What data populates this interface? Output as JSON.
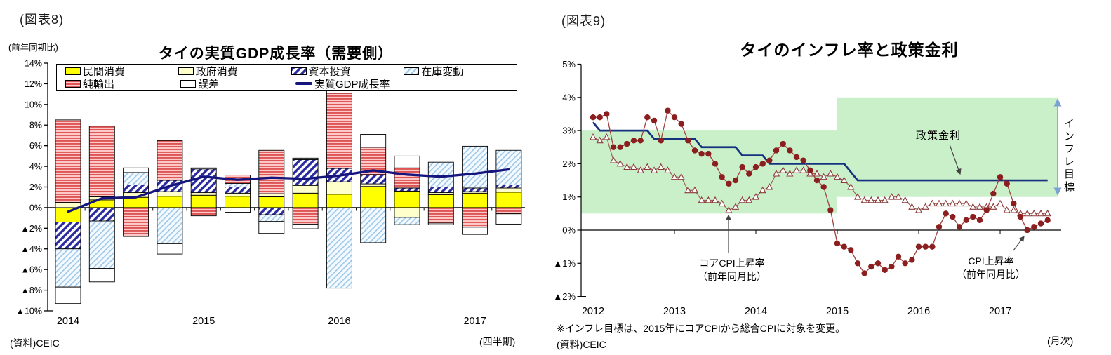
{
  "colors": {
    "private_consumption": "#ffff00",
    "government_consumption": "#ffffcc",
    "capex_stripe": "#2b2ba0",
    "inventory_stripe": "#9fc9e8",
    "inventory_bg": "#f4faff",
    "net_export_stripe": "#dd5555",
    "net_export_bg": "#ffc8c8",
    "error_fill": "#ffffff",
    "gdp_line": "#15157e",
    "policy_line": "#16327f",
    "cpi_marker": "#8b1e1e",
    "cpi_line": "#a04040",
    "core_line": "#9c5f50",
    "core_marker_stroke": "#8b3a3a",
    "target_band": "#c9f0c9",
    "target_arrow": "#7aa3d4",
    "annotation_arrow": "#444444",
    "axis": "#000000"
  },
  "figures": {
    "f8": {
      "fig_label": "(図表8)",
      "unit_label": "(前年同期比)",
      "source": "(資料)CEIC",
      "freq_label": "(四半期)"
    },
    "f9": {
      "fig_label": "(図表9)",
      "note": "※インフレ目標は、2015年にコアCPIから総合CPIに対象を変更。",
      "source": "(資料)CEIC",
      "freq_label": "(月次)",
      "annotations": {
        "policy_label": "政策金利",
        "core_label": "コアCPI上昇率\n（前年同月比）",
        "cpi_label": "CPI上昇率\n（前年同月比）",
        "band_label": "インフレ目標"
      }
    }
  },
  "chart_data": [
    {
      "type": "bar",
      "subtype": "stacked-bar-with-line",
      "title": "タイの実質GDP成長率（需要側）",
      "unit_label": "(前年同期比)",
      "x_note": "(四半期)",
      "source": "(資料)CEIC",
      "ylim": [
        -10,
        14
      ],
      "grid": false,
      "legend_position": "top-inside-box",
      "categories": [
        "2014Q1",
        "2014Q2",
        "2014Q3",
        "2014Q4",
        "2015Q1",
        "2015Q2",
        "2015Q3",
        "2015Q4",
        "2016Q1",
        "2016Q2",
        "2016Q3",
        "2016Q4",
        "2017Q1",
        "2017Q2"
      ],
      "series": [
        {
          "key": "priv",
          "name": "民間消費",
          "style": "solid-yellow",
          "values": [
            -1.4,
            0.75,
            1.0,
            1.1,
            1.2,
            1.1,
            1.05,
            1.4,
            1.3,
            2.05,
            1.6,
            1.25,
            1.4,
            1.5
          ]
        },
        {
          "key": "gov",
          "name": "政府消費",
          "style": "solid-cream",
          "values": [
            0.5,
            0.3,
            0.45,
            0.45,
            0.25,
            0.3,
            0.3,
            0.75,
            1.2,
            0.25,
            -0.95,
            0.2,
            0.15,
            0.4
          ]
        },
        {
          "key": "capex",
          "name": "資本投資",
          "style": "blue-diagonal-hatch",
          "values": [
            -2.6,
            -1.3,
            0.75,
            1.1,
            2.3,
            0.6,
            -0.7,
            2.5,
            1.3,
            0.9,
            0.3,
            0.55,
            0.35,
            0.3
          ]
        },
        {
          "key": "inv",
          "name": "在庫変動",
          "style": "lightblue-diagonal-hatch",
          "values": [
            -3.7,
            -4.6,
            1.2,
            -3.5,
            0.0,
            0.35,
            -0.65,
            0.15,
            -7.8,
            -3.4,
            -0.7,
            2.4,
            4.05,
            3.35
          ]
        },
        {
          "key": "netex",
          "name": "純輸出",
          "style": "red-horizontal-stripes",
          "values": [
            8.0,
            6.85,
            -2.8,
            3.85,
            -0.8,
            0.8,
            4.2,
            -1.6,
            7.3,
            2.65,
            1.95,
            -1.5,
            -1.9,
            -0.6
          ]
        },
        {
          "key": "err",
          "name": "誤差",
          "style": "white-outline",
          "values": [
            -1.6,
            -1.3,
            0.45,
            -1.0,
            0.1,
            -0.45,
            -1.15,
            -0.45,
            0.5,
            1.25,
            1.15,
            -0.15,
            -0.7,
            -1.0
          ]
        }
      ],
      "line_series": {
        "key": "gdp",
        "name": "実質GDP成長率",
        "values": [
          -0.4,
          0.9,
          1.0,
          2.1,
          3.0,
          2.7,
          2.9,
          2.8,
          3.1,
          3.6,
          3.2,
          3.0,
          3.3,
          3.7
        ]
      },
      "y_ticks": [
        {
          "v": 14,
          "label": "14%"
        },
        {
          "v": 12,
          "label": "12%"
        },
        {
          "v": 10,
          "label": "10%"
        },
        {
          "v": 8,
          "label": "8%"
        },
        {
          "v": 6,
          "label": "6%"
        },
        {
          "v": 4,
          "label": "4%"
        },
        {
          "v": 2,
          "label": "2%"
        },
        {
          "v": 0,
          "label": "0%"
        },
        {
          "v": -2,
          "label": "▲2%"
        },
        {
          "v": -4,
          "label": "▲4%"
        },
        {
          "v": -6,
          "label": "▲6%"
        },
        {
          "v": -8,
          "label": "▲8%"
        },
        {
          "v": -10,
          "label": "▲10%"
        }
      ],
      "year_labels": [
        {
          "label": "2014",
          "bar": 0
        },
        {
          "label": "2015",
          "bar": 4
        },
        {
          "label": "2016",
          "bar": 8
        },
        {
          "label": "2017",
          "bar": 12
        }
      ]
    },
    {
      "type": "line",
      "title": "タイのインフレ率と政策金利",
      "x_unit": "month",
      "x_start": "2012-01",
      "months": 68,
      "ylim": [
        -2,
        5
      ],
      "grid": false,
      "series": [
        {
          "key": "policy",
          "name": "政策金利",
          "marker": "none",
          "values": [
            3.25,
            3,
            3,
            3,
            3,
            3,
            3,
            3,
            3,
            2.75,
            2.75,
            2.75,
            2.75,
            2.75,
            2.75,
            2.75,
            2.5,
            2.5,
            2.5,
            2.5,
            2.5,
            2.5,
            2.25,
            2.25,
            2.25,
            2.25,
            2,
            2,
            2,
            2,
            2,
            2,
            2,
            2,
            2,
            2,
            2,
            2,
            1.75,
            1.5,
            1.5,
            1.5,
            1.5,
            1.5,
            1.5,
            1.5,
            1.5,
            1.5,
            1.5,
            1.5,
            1.5,
            1.5,
            1.5,
            1.5,
            1.5,
            1.5,
            1.5,
            1.5,
            1.5,
            1.5,
            1.5,
            1.5,
            1.5,
            1.5,
            1.5,
            1.5,
            1.5,
            1.5
          ]
        },
        {
          "key": "cpi",
          "name": "CPI上昇率（前年同月比）",
          "marker": "circle",
          "values": [
            3.4,
            3.4,
            3.5,
            2.5,
            2.5,
            2.6,
            2.7,
            2.7,
            3.4,
            3.3,
            2.7,
            3.6,
            3.4,
            3.2,
            2.7,
            2.4,
            2.3,
            2.3,
            2.0,
            1.6,
            1.4,
            1.5,
            1.9,
            1.7,
            1.9,
            2.0,
            2.1,
            2.4,
            2.6,
            2.4,
            2.2,
            2.1,
            1.8,
            1.5,
            1.3,
            0.6,
            -0.4,
            -0.5,
            -0.6,
            -1.0,
            -1.3,
            -1.1,
            -1.0,
            -1.2,
            -1.1,
            -0.8,
            -1.0,
            -0.9,
            -0.5,
            -0.5,
            -0.5,
            0.1,
            0.5,
            0.4,
            0.1,
            0.3,
            0.4,
            0.3,
            0.6,
            1.1,
            1.6,
            1.4,
            0.8,
            0.4,
            0.0,
            0.1,
            0.2,
            0.3
          ]
        },
        {
          "key": "core",
          "name": "コアCPI上昇率（前年同月比）",
          "marker": "triangle-open",
          "values": [
            2.8,
            2.7,
            2.8,
            2.1,
            2.0,
            1.9,
            1.9,
            1.8,
            1.9,
            1.8,
            1.9,
            1.8,
            1.6,
            1.6,
            1.2,
            1.2,
            0.9,
            0.9,
            0.9,
            0.8,
            0.6,
            0.7,
            0.9,
            0.9,
            1.0,
            1.2,
            1.3,
            1.7,
            1.8,
            1.7,
            1.8,
            1.8,
            1.7,
            1.7,
            1.6,
            1.7,
            1.6,
            1.5,
            1.3,
            1.0,
            0.9,
            0.9,
            0.9,
            0.9,
            1.0,
            1.0,
            0.9,
            0.7,
            0.6,
            0.7,
            0.8,
            0.8,
            0.8,
            0.8,
            0.8,
            0.8,
            0.7,
            0.7,
            0.7,
            0.7,
            0.8,
            0.6,
            0.6,
            0.5,
            0.5,
            0.5,
            0.5,
            0.5
          ]
        }
      ],
      "target_bands": [
        {
          "label": "インフレ目標(コアCPI)",
          "from_month": 0,
          "to_month": 36,
          "low": 0.5,
          "high": 3.0
        },
        {
          "label": "インフレ目標(総合CPI)",
          "from_month": 36,
          "to_month": 68.5,
          "low": 1.0,
          "high": 4.0
        }
      ],
      "band_label": "インフレ目標",
      "note": "※インフレ目標は、2015年にコアCPIから総合CPIに対象を変更。",
      "source": "(資料)CEIC",
      "x_note": "(月次)",
      "y_ticks": [
        {
          "v": 5,
          "label": "5%"
        },
        {
          "v": 4,
          "label": "4%"
        },
        {
          "v": 3,
          "label": "3%"
        },
        {
          "v": 2,
          "label": "2%"
        },
        {
          "v": 1,
          "label": "1%"
        },
        {
          "v": 0,
          "label": "0%"
        },
        {
          "v": -1,
          "label": "▲1%"
        },
        {
          "v": -2,
          "label": "▲2%"
        }
      ],
      "year_labels": [
        {
          "label": "2012",
          "month": 0
        },
        {
          "label": "2013",
          "month": 12
        },
        {
          "label": "2014",
          "month": 24
        },
        {
          "label": "2015",
          "month": 36
        },
        {
          "label": "2016",
          "month": 48
        },
        {
          "label": "2017",
          "month": 60
        }
      ]
    }
  ]
}
